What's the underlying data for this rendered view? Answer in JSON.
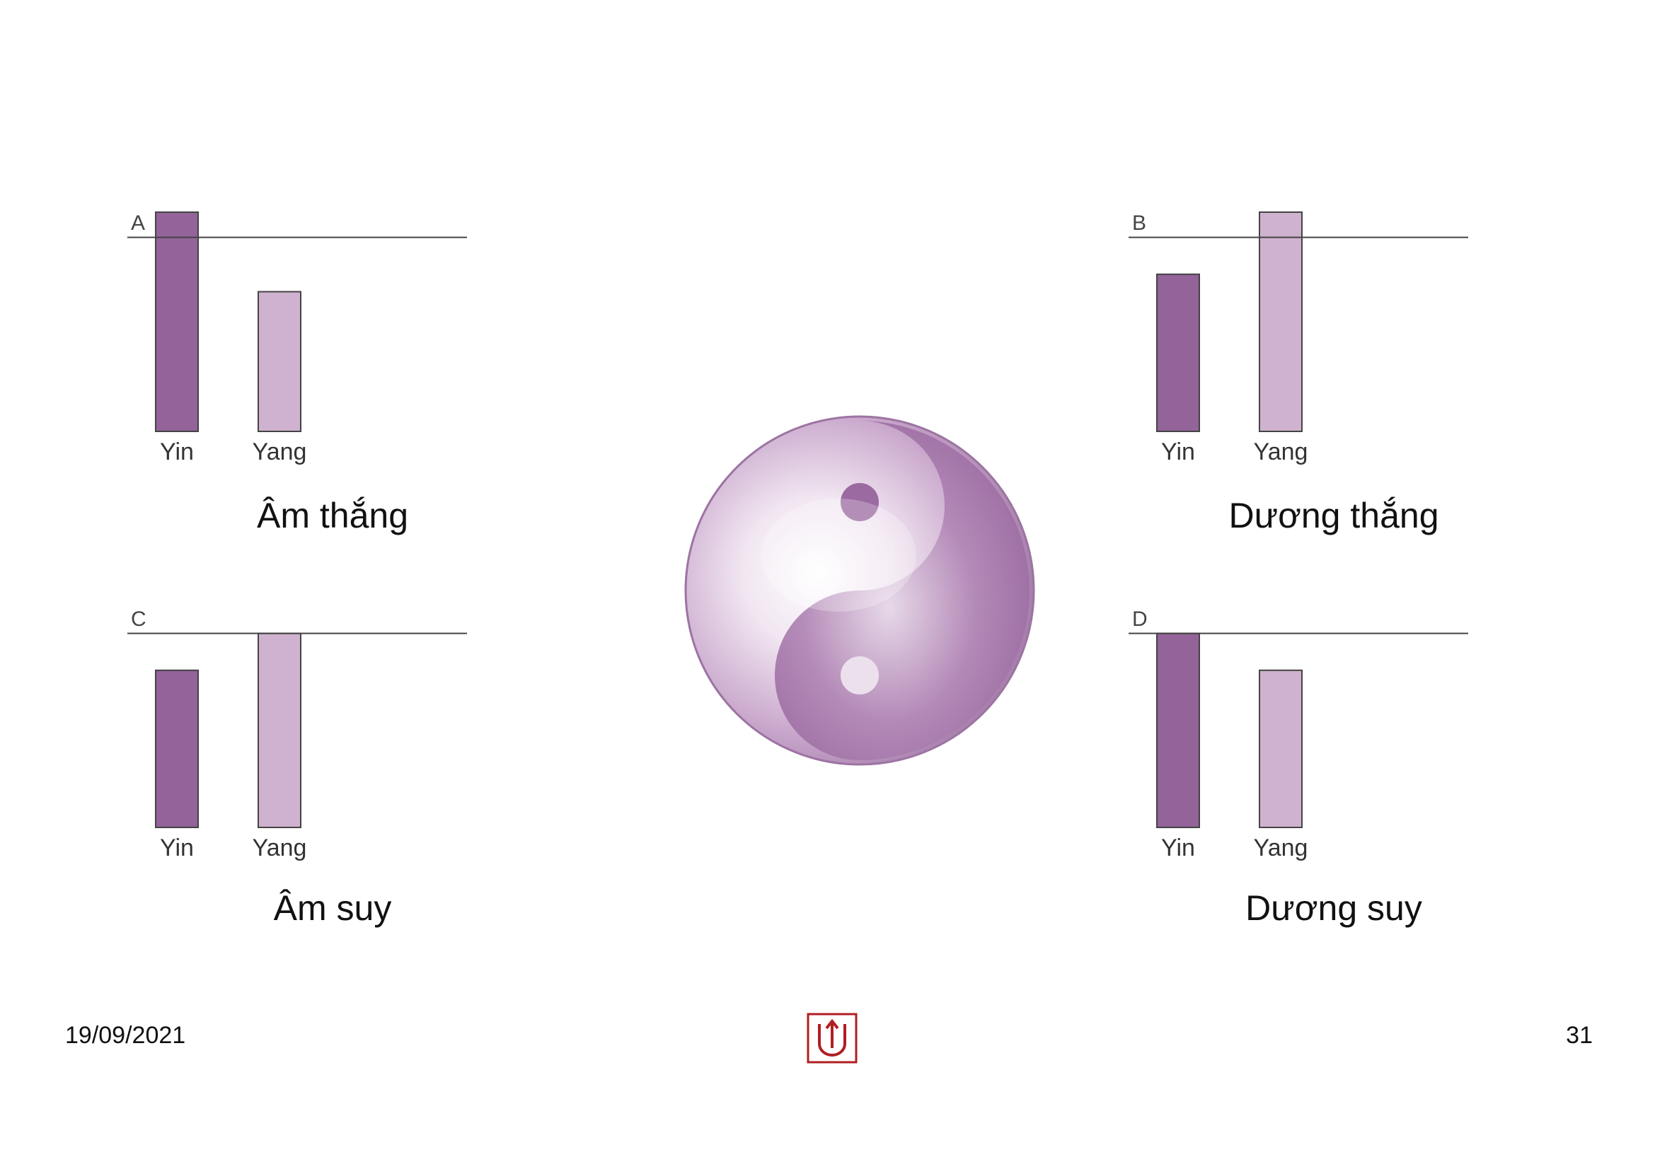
{
  "slide": {
    "date": "19/09/2021",
    "page_number": "31"
  },
  "colors": {
    "yin": "#936399",
    "yang": "#cfb2cf",
    "bar_stroke": "#444444",
    "line": "#444444",
    "taiji_dark": "#8e5a95",
    "logo_red": "#b01e23"
  },
  "chart_data": [
    {
      "type": "bar",
      "panel": "A",
      "caption": "Âm thắng",
      "categories": [
        "Yin",
        "Yang"
      ],
      "values": [
        1.13,
        0.72
      ],
      "reference_line": 1.0,
      "ylim": [
        0,
        1.13
      ]
    },
    {
      "type": "bar",
      "panel": "B",
      "caption": "Dương thắng",
      "categories": [
        "Yin",
        "Yang"
      ],
      "values": [
        0.81,
        1.13
      ],
      "reference_line": 1.0,
      "ylim": [
        0,
        1.13
      ]
    },
    {
      "type": "bar",
      "panel": "C",
      "caption": "Âm suy",
      "categories": [
        "Yin",
        "Yang"
      ],
      "values": [
        0.81,
        1.0
      ],
      "reference_line": 1.0,
      "ylim": [
        0,
        1.13
      ]
    },
    {
      "type": "bar",
      "panel": "D",
      "caption": "Dương suy",
      "categories": [
        "Yin",
        "Yang"
      ],
      "values": [
        1.0,
        0.81
      ],
      "reference_line": 1.0,
      "ylim": [
        0,
        1.13
      ]
    }
  ]
}
